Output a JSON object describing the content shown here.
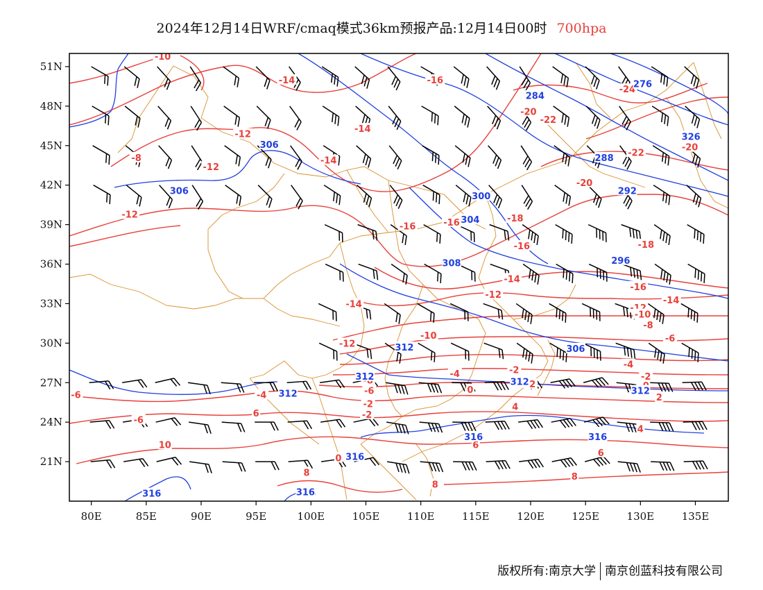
{
  "title": {
    "main": "2024年12月14日WRF/cmaq模式36km预报产品:12月14日00时",
    "level": "700hpa"
  },
  "axes": {
    "x_ticks": [
      "80E",
      "85E",
      "90E",
      "95E",
      "100E",
      "105E",
      "110E",
      "115E",
      "120E",
      "125E",
      "130E",
      "135E"
    ],
    "y_ticks": [
      "51N",
      "48N",
      "45N",
      "42N",
      "39N",
      "36N",
      "33N",
      "30N",
      "27N",
      "24N",
      "21N"
    ],
    "lon_range": [
      78,
      138
    ],
    "lat_range": [
      18,
      52
    ]
  },
  "colors": {
    "temperature": "#e8403a",
    "height": "#2040e0",
    "wind": "#000000",
    "boundary": "#d8902a"
  },
  "contour_labels": {
    "temperature": [
      {
        "text": "-10",
        "lon": 86.5,
        "lat": 51.8
      },
      {
        "text": "-14",
        "lon": 97.8,
        "lat": 50.0
      },
      {
        "text": "-16",
        "lon": 111.3,
        "lat": 50.0
      },
      {
        "text": "-14",
        "lon": 104.7,
        "lat": 46.3
      },
      {
        "text": "-12",
        "lon": 93.8,
        "lat": 45.9
      },
      {
        "text": "-8",
        "lon": 84.1,
        "lat": 44.1
      },
      {
        "text": "-12",
        "lon": 90.9,
        "lat": 43.4
      },
      {
        "text": "-14",
        "lon": 101.6,
        "lat": 43.9
      },
      {
        "text": "-20",
        "lon": 119.8,
        "lat": 47.6
      },
      {
        "text": "-22",
        "lon": 121.6,
        "lat": 47.0
      },
      {
        "text": "-24",
        "lon": 128.8,
        "lat": 49.3
      },
      {
        "text": "-22",
        "lon": 129.6,
        "lat": 44.5
      },
      {
        "text": "-20",
        "lon": 134.5,
        "lat": 44.9
      },
      {
        "text": "-20",
        "lon": 124.9,
        "lat": 42.2
      },
      {
        "text": "-12",
        "lon": 83.5,
        "lat": 39.8
      },
      {
        "text": "-16",
        "lon": 108.8,
        "lat": 38.9
      },
      {
        "text": "-16",
        "lon": 112.8,
        "lat": 39.2
      },
      {
        "text": "-18",
        "lon": 118.6,
        "lat": 39.5
      },
      {
        "text": "-16",
        "lon": 119.2,
        "lat": 37.4
      },
      {
        "text": "-18",
        "lon": 130.5,
        "lat": 37.5
      },
      {
        "text": "-14",
        "lon": 118.3,
        "lat": 34.9
      },
      {
        "text": "-12",
        "lon": 116.6,
        "lat": 33.7
      },
      {
        "text": "-16",
        "lon": 129.8,
        "lat": 34.3
      },
      {
        "text": "-14",
        "lon": 132.8,
        "lat": 33.3
      },
      {
        "text": "-12",
        "lon": 129.8,
        "lat": 32.7
      },
      {
        "text": "-10",
        "lon": 130.2,
        "lat": 32.2
      },
      {
        "text": "-8",
        "lon": 130.7,
        "lat": 31.4
      },
      {
        "text": "-6",
        "lon": 132.7,
        "lat": 30.4
      },
      {
        "text": "-14",
        "lon": 103.9,
        "lat": 33.0
      },
      {
        "text": "-12",
        "lon": 103.3,
        "lat": 30.0
      },
      {
        "text": "-10",
        "lon": 110.7,
        "lat": 30.6
      },
      {
        "text": "-8",
        "lon": 105.2,
        "lat": 27.2
      },
      {
        "text": "-6",
        "lon": 105.3,
        "lat": 26.4
      },
      {
        "text": "-4",
        "lon": 113.1,
        "lat": 27.7
      },
      {
        "text": "-2",
        "lon": 118.5,
        "lat": 28.0
      },
      {
        "text": "0",
        "lon": 114.5,
        "lat": 26.5
      },
      {
        "text": "-2",
        "lon": 120.0,
        "lat": 26.9
      },
      {
        "text": "-2",
        "lon": 105.2,
        "lat": 25.4
      },
      {
        "text": "-2",
        "lon": 105.1,
        "lat": 24.6
      },
      {
        "text": "4",
        "lon": 118.6,
        "lat": 25.2
      },
      {
        "text": "-4",
        "lon": 95.5,
        "lat": 26.1
      },
      {
        "text": "-6",
        "lon": 78.6,
        "lat": 26.1
      },
      {
        "text": "6",
        "lon": 95.0,
        "lat": 24.7
      },
      {
        "text": "-6",
        "lon": 84.3,
        "lat": 24.2
      },
      {
        "text": "-4",
        "lon": 128.9,
        "lat": 28.4
      },
      {
        "text": "-2",
        "lon": 130.5,
        "lat": 27.5
      },
      {
        "text": "0",
        "lon": 130.5,
        "lat": 26.8
      },
      {
        "text": "2",
        "lon": 131.7,
        "lat": 25.9
      },
      {
        "text": "4",
        "lon": 130.0,
        "lat": 23.5
      },
      {
        "text": "6",
        "lon": 126.4,
        "lat": 21.7
      },
      {
        "text": "8",
        "lon": 124.0,
        "lat": 19.9
      },
      {
        "text": "6",
        "lon": 115.0,
        "lat": 22.3
      },
      {
        "text": "8",
        "lon": 111.3,
        "lat": 19.3
      },
      {
        "text": "10",
        "lon": 86.7,
        "lat": 22.3
      },
      {
        "text": "8",
        "lon": 99.6,
        "lat": 20.2
      },
      {
        "text": "0",
        "lon": 102.5,
        "lat": 21.3
      }
    ],
    "height": [
      {
        "text": "276",
        "lon": 130.2,
        "lat": 49.7
      },
      {
        "text": "284",
        "lon": 120.4,
        "lat": 48.8
      },
      {
        "text": "288",
        "lon": 126.7,
        "lat": 44.1
      },
      {
        "text": "292",
        "lon": 128.8,
        "lat": 41.6
      },
      {
        "text": "296",
        "lon": 128.2,
        "lat": 36.3
      },
      {
        "text": "300",
        "lon": 115.5,
        "lat": 41.2
      },
      {
        "text": "304",
        "lon": 114.5,
        "lat": 39.4
      },
      {
        "text": "308",
        "lon": 112.8,
        "lat": 36.1
      },
      {
        "text": "306",
        "lon": 96.2,
        "lat": 45.1
      },
      {
        "text": "306",
        "lon": 88.0,
        "lat": 41.6
      },
      {
        "text": "306",
        "lon": 124.1,
        "lat": 29.6
      },
      {
        "text": "312",
        "lon": 108.5,
        "lat": 29.7
      },
      {
        "text": "312",
        "lon": 104.9,
        "lat": 27.5
      },
      {
        "text": "312",
        "lon": 119.0,
        "lat": 27.1
      },
      {
        "text": "312",
        "lon": 97.9,
        "lat": 26.2
      },
      {
        "text": "312",
        "lon": 130.0,
        "lat": 26.4
      },
      {
        "text": "316",
        "lon": 114.8,
        "lat": 22.9
      },
      {
        "text": "316",
        "lon": 104.0,
        "lat": 21.4
      },
      {
        "text": "316",
        "lon": 85.5,
        "lat": 18.6
      },
      {
        "text": "316",
        "lon": 99.5,
        "lat": 18.7
      },
      {
        "text": "316",
        "lon": 126.1,
        "lat": 22.9
      },
      {
        "text": "326",
        "lon": 134.6,
        "lat": 45.7
      }
    ]
  },
  "credits": {
    "left": "版权所有:南京大学",
    "right": "南京创蓝科技有限公司"
  }
}
